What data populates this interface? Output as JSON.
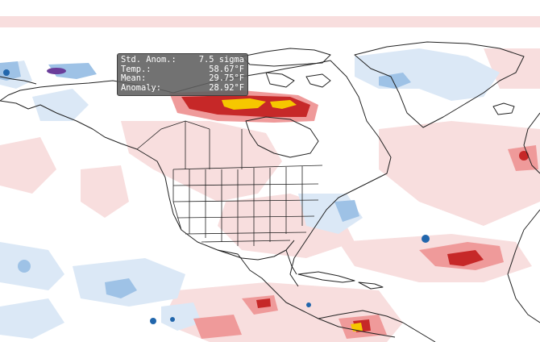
{
  "tooltip": {
    "rows": [
      {
        "label": "Std. Anom.:",
        "value": "7.5 sigma"
      },
      {
        "label": "Temp.:",
        "value": "58.67°F"
      },
      {
        "label": "Mean:",
        "value": "29.75°F"
      },
      {
        "label": "Anomaly:",
        "value": "28.92°F"
      }
    ]
  },
  "colors": {
    "ocean": "#ffffff",
    "light_red": "#f8d7d7",
    "mid_red": "#ef9a9a",
    "deep_red": "#c62828",
    "dark_red": "#a50f15",
    "yellow": "#f6c700",
    "light_blue": "#dbe8f6",
    "mid_blue": "#9ec2e6",
    "deep_blue": "#2166ac",
    "purple": "#6a3d9a",
    "border_line": "#222222"
  }
}
